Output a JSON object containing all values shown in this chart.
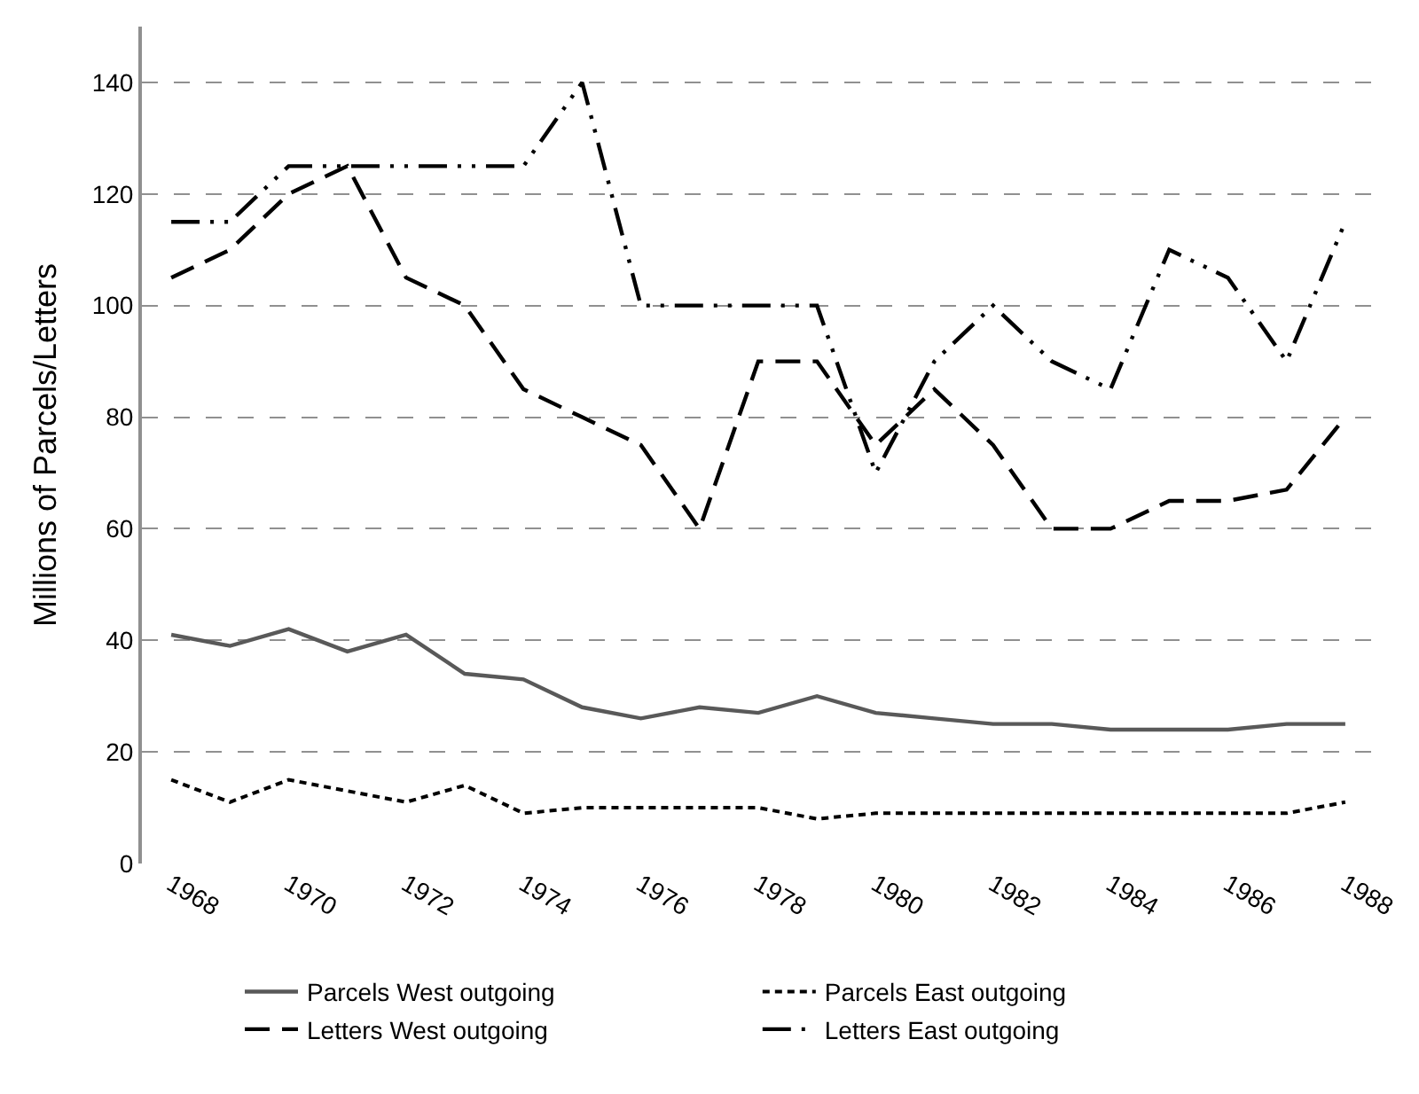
{
  "chart_data": {
    "type": "line",
    "ylabel": "Millions of Parcels/Letters",
    "x": [
      1968,
      1969,
      1970,
      1971,
      1972,
      1973,
      1974,
      1975,
      1976,
      1977,
      1978,
      1979,
      1980,
      1981,
      1982,
      1983,
      1984,
      1985,
      1986,
      1987,
      1988
    ],
    "series": [
      {
        "name": "Parcels West outgoing",
        "color": "#595959",
        "line_style": "solid",
        "values": [
          41,
          39,
          42,
          38,
          41,
          34,
          33,
          28,
          26,
          28,
          27,
          30,
          27,
          26,
          25,
          25,
          24,
          24,
          24,
          25,
          25
        ]
      },
      {
        "name": "Parcels East outgoing",
        "color": "#000000",
        "line_style": "dotted",
        "values": [
          15,
          11,
          15,
          13,
          11,
          14,
          9,
          10,
          10,
          10,
          10,
          8,
          9,
          9,
          9,
          9,
          9,
          9,
          9,
          9,
          11
        ]
      },
      {
        "name": "Letters West outgoing",
        "color": "#000000",
        "line_style": "dashed",
        "values": [
          105,
          110,
          120,
          125,
          105,
          100,
          85,
          80,
          75,
          60,
          90,
          90,
          75,
          85,
          75,
          60,
          60,
          65,
          65,
          67,
          80
        ]
      },
      {
        "name": "Letters East outgoing",
        "color": "#000000",
        "line_style": "dashdot",
        "values": [
          115,
          115,
          125,
          125,
          125,
          125,
          125,
          140,
          100,
          100,
          100,
          100,
          70,
          90,
          100,
          90,
          85,
          110,
          105,
          90,
          115
        ]
      }
    ],
    "xlim": [
      1967.5,
      1988.5
    ],
    "xticks": [
      1968,
      1970,
      1972,
      1974,
      1976,
      1978,
      1980,
      1982,
      1984,
      1986,
      1988
    ],
    "ylim": [
      0,
      150
    ],
    "yticks": [
      0,
      20,
      40,
      60,
      80,
      100,
      120,
      140
    ],
    "grid": "y",
    "legend": "bottom",
    "marker": "none"
  }
}
